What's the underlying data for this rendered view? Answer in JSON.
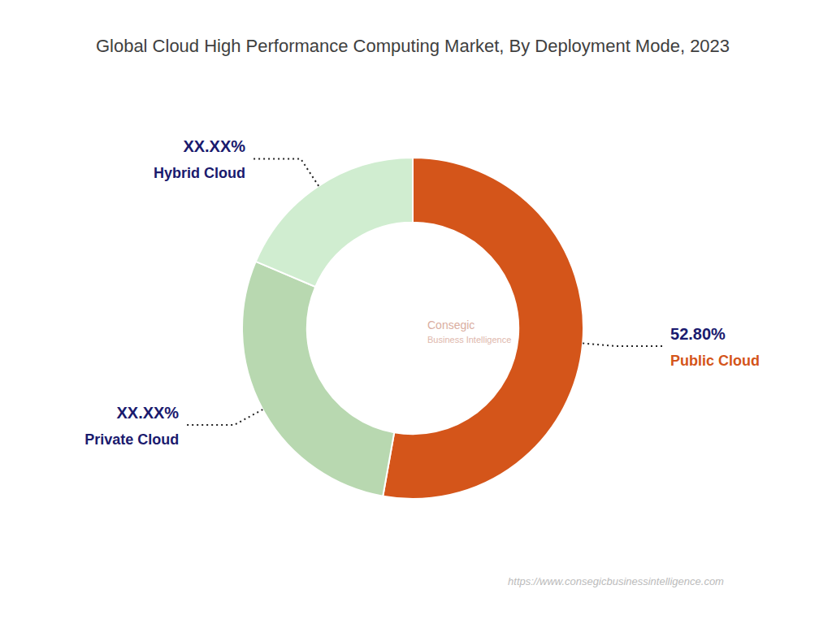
{
  "chart_data": {
    "type": "donut",
    "title": "Global Cloud High Performance Computing Market, By Deployment Mode, 2023",
    "categories": [
      "Public Cloud",
      "Private Cloud",
      "Hybrid Cloud"
    ],
    "values": [
      52.8,
      28.6,
      18.6
    ],
    "value_labels": [
      "52.80%",
      "XX.XX%",
      "XX.XX%"
    ],
    "colors": [
      "#D4551A",
      "#B8D8B0",
      "#D0EDD0"
    ],
    "data_labels": true,
    "annotations": [
      "Consegic",
      "Business Intelligence",
      "https://www.consegicbusinessintelligence.com"
    ]
  }
}
